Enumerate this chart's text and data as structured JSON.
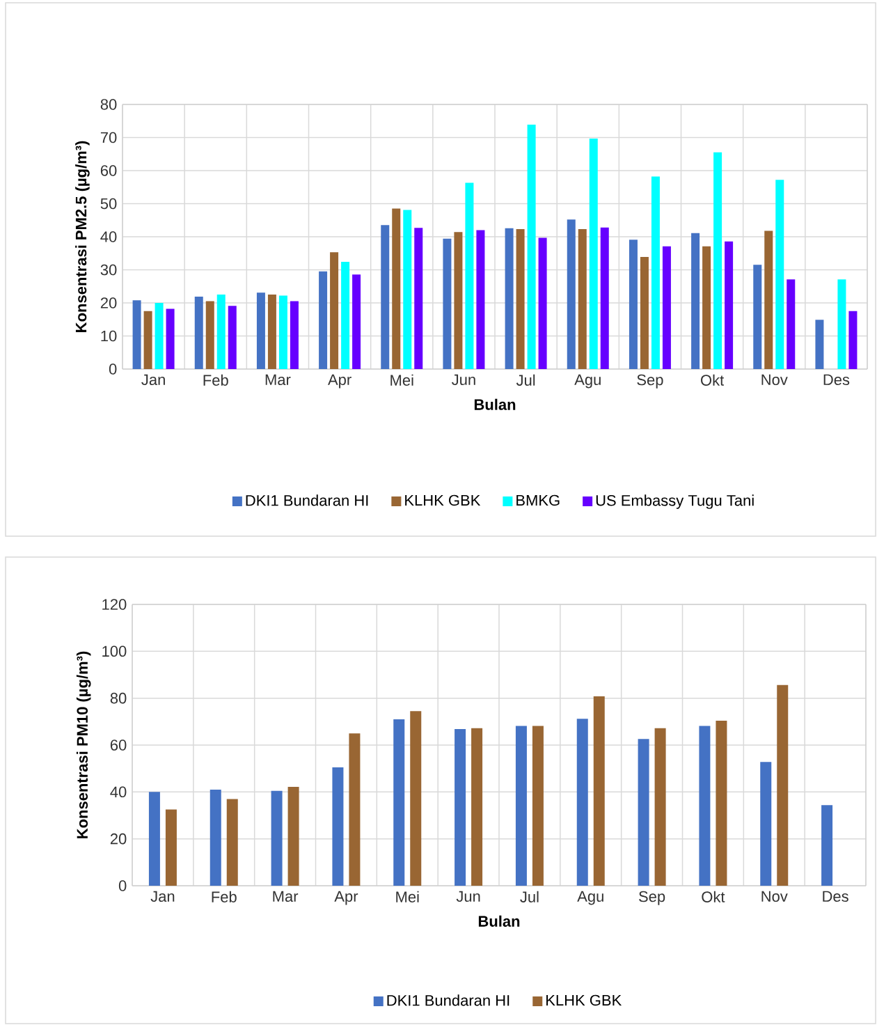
{
  "chart_data": [
    {
      "type": "bar",
      "xlabel": "Bulan",
      "ylabel": "Konsentrasi PM2.5 (µg/m³)",
      "categories": [
        "Jan",
        "Feb",
        "Mar",
        "Apr",
        "Mei",
        "Jun",
        "Jul",
        "Agu",
        "Sep",
        "Okt",
        "Nov",
        "Des"
      ],
      "series": [
        {
          "name": "DKI1 Bundaran HI",
          "color": "#4472c4",
          "values": [
            20.8,
            21.9,
            23.1,
            29.5,
            43.5,
            39.4,
            42.6,
            45.2,
            39.1,
            41.1,
            31.5,
            14.9
          ]
        },
        {
          "name": "KLHK GBK",
          "color": "#996633",
          "values": [
            17.5,
            20.5,
            22.5,
            35.3,
            48.5,
            41.4,
            42.3,
            42.3,
            33.9,
            37.1,
            41.8,
            null
          ]
        },
        {
          "name": "BMKG",
          "color": "#00ffff",
          "values": [
            20.0,
            22.5,
            22.2,
            32.4,
            48.1,
            56.3,
            73.9,
            69.7,
            58.2,
            65.5,
            57.2,
            27.1
          ]
        },
        {
          "name": "US Embassy Tugu Tani",
          "color": "#6600ff",
          "values": [
            18.2,
            19.1,
            20.5,
            28.6,
            42.7,
            42.0,
            39.7,
            42.8,
            37.1,
            38.6,
            27.1,
            17.5
          ]
        }
      ],
      "ylim": [
        0,
        80
      ],
      "yticks": [
        0,
        10,
        20,
        30,
        40,
        50,
        60,
        70,
        80
      ],
      "grid": true,
      "legend": "bottom"
    },
    {
      "type": "bar",
      "xlabel": "Bulan",
      "ylabel": "Konsentrasi PM10 (µg/m³)",
      "categories": [
        "Jan",
        "Feb",
        "Mar",
        "Apr",
        "Mei",
        "Jun",
        "Jul",
        "Agu",
        "Sep",
        "Okt",
        "Nov",
        "Des"
      ],
      "series": [
        {
          "name": "DKI1 Bundaran HI",
          "color": "#4472c4",
          "values": [
            40,
            41,
            40.5,
            50.5,
            71,
            66.8,
            68.2,
            71.2,
            62.6,
            68.2,
            52.8,
            34.4
          ]
        },
        {
          "name": "KLHK GBK",
          "color": "#996633",
          "values": [
            32.5,
            37,
            42.2,
            65,
            74.5,
            67.2,
            68.2,
            80.8,
            67.2,
            70.4,
            85.6,
            null
          ]
        }
      ],
      "ylim": [
        0,
        120
      ],
      "yticks": [
        0,
        20,
        40,
        60,
        80,
        100,
        120
      ],
      "grid": true,
      "legend": "bottom"
    }
  ]
}
